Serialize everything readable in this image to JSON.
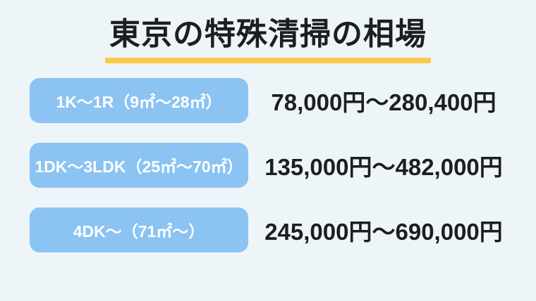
{
  "title": {
    "text": "東京の特殊清掃の相場"
  },
  "colors": {
    "background": "#eef5f9",
    "badge_blue": "#8bc3f2",
    "underline_yellow": "#fbca4d",
    "text_dark": "#1b1e23",
    "badge_text": "#ffffff"
  },
  "rows": [
    {
      "room_type": "1K～1R（9㎡～28㎡）",
      "price_range": "78,000円～280,400円"
    },
    {
      "room_type": "1DK～3LDK（25㎡～70㎡）",
      "price_range": "135,000円～482,000円"
    },
    {
      "room_type": "4DK～（71㎡～）",
      "price_range": "245,000円～690,000円"
    }
  ],
  "chart_data": {
    "type": "table",
    "title": "東京の特殊清掃の相場",
    "rows": [
      [
        "1K～1R（9㎡～28㎡）",
        "78,000円～280,400円"
      ],
      [
        "1DK～3LDK（25㎡～70㎡）",
        "135,000円～482,000円"
      ],
      [
        "4DK～（71㎡～）",
        "245,000円～690,000円"
      ]
    ],
    "price_ranges_yen": [
      [
        78000,
        280400
      ],
      [
        135000,
        482000
      ],
      [
        245000,
        690000
      ]
    ],
    "floor_area_ranges_sqm": [
      [
        9,
        28
      ],
      [
        25,
        70
      ],
      [
        71,
        null
      ]
    ]
  }
}
